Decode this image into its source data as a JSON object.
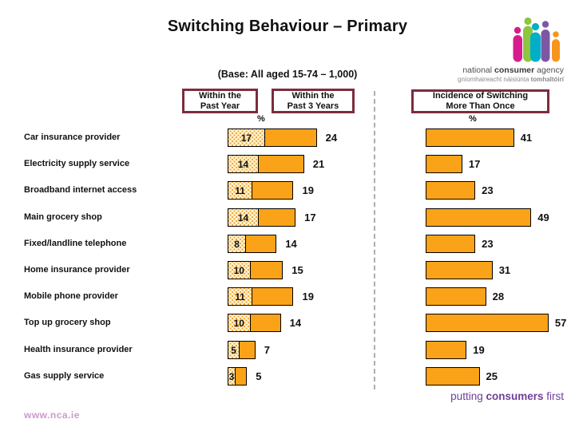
{
  "title": "Switching Behaviour – Primary",
  "subtitle": "(Base: All aged 15-74 – 1,000)",
  "logo": {
    "name": "national-consumer-agency-logo",
    "line1_pre": "national ",
    "line1_bold": "consumer",
    "line1_post": " agency",
    "line2_pre": "gníomhaireacht náisiúnta ",
    "line2_bold": "tomhaltóirí",
    "figure_colors": [
      "#D81B8C",
      "#8DC63F",
      "#00AEC7",
      "#7E57A4",
      "#F7941D"
    ]
  },
  "headers": {
    "past_year": {
      "line1": "Within the",
      "line2": "Past Year"
    },
    "past_3_years": {
      "line1": "Within the",
      "line2": "Past 3 Years"
    },
    "incidence": {
      "line1": "Incidence of Switching",
      "line2": "More Than Once"
    },
    "percent": "%"
  },
  "chart_data": {
    "type": "bar",
    "orientation": "horizontal",
    "title": "Switching Behaviour – Primary",
    "unit": "%",
    "grid": false,
    "categories": [
      "Car insurance provider",
      "Electricity supply service",
      "Broadband internet access",
      "Main grocery shop",
      "Fixed/landline telephone",
      "Home insurance provider",
      "Mobile phone provider",
      "Top up grocery shop",
      "Health insurance provider",
      "Gas supply service"
    ],
    "series": [
      {
        "name": "Within the Past Year",
        "style": "patterned",
        "values": [
          17,
          14,
          11,
          14,
          8,
          10,
          11,
          10,
          5,
          3
        ]
      },
      {
        "name": "Within the Past 3 Years",
        "style": "solid-stacked",
        "values": [
          24,
          21,
          19,
          17,
          14,
          15,
          19,
          14,
          7,
          5
        ]
      },
      {
        "name": "Incidence of Switching More Than Once",
        "style": "solid-separate",
        "values": [
          41,
          17,
          23,
          49,
          23,
          31,
          28,
          57,
          19,
          25
        ]
      }
    ],
    "value_labels": "shown",
    "xlim": [
      0,
      60
    ]
  },
  "footer": {
    "url": "www.nca.ie",
    "tagline_pre": "putting ",
    "tagline_bold": "consumers",
    "tagline_post": " first"
  },
  "colors": {
    "bar": "#FBA318",
    "pattern_bg": "#FEF4D4",
    "pattern_dot": "#F0A637",
    "box_border": "#7D2C3E",
    "dashed_line": "#ADADAD",
    "url_text": "#CC99CC",
    "tagline_text": "#6E4099"
  }
}
